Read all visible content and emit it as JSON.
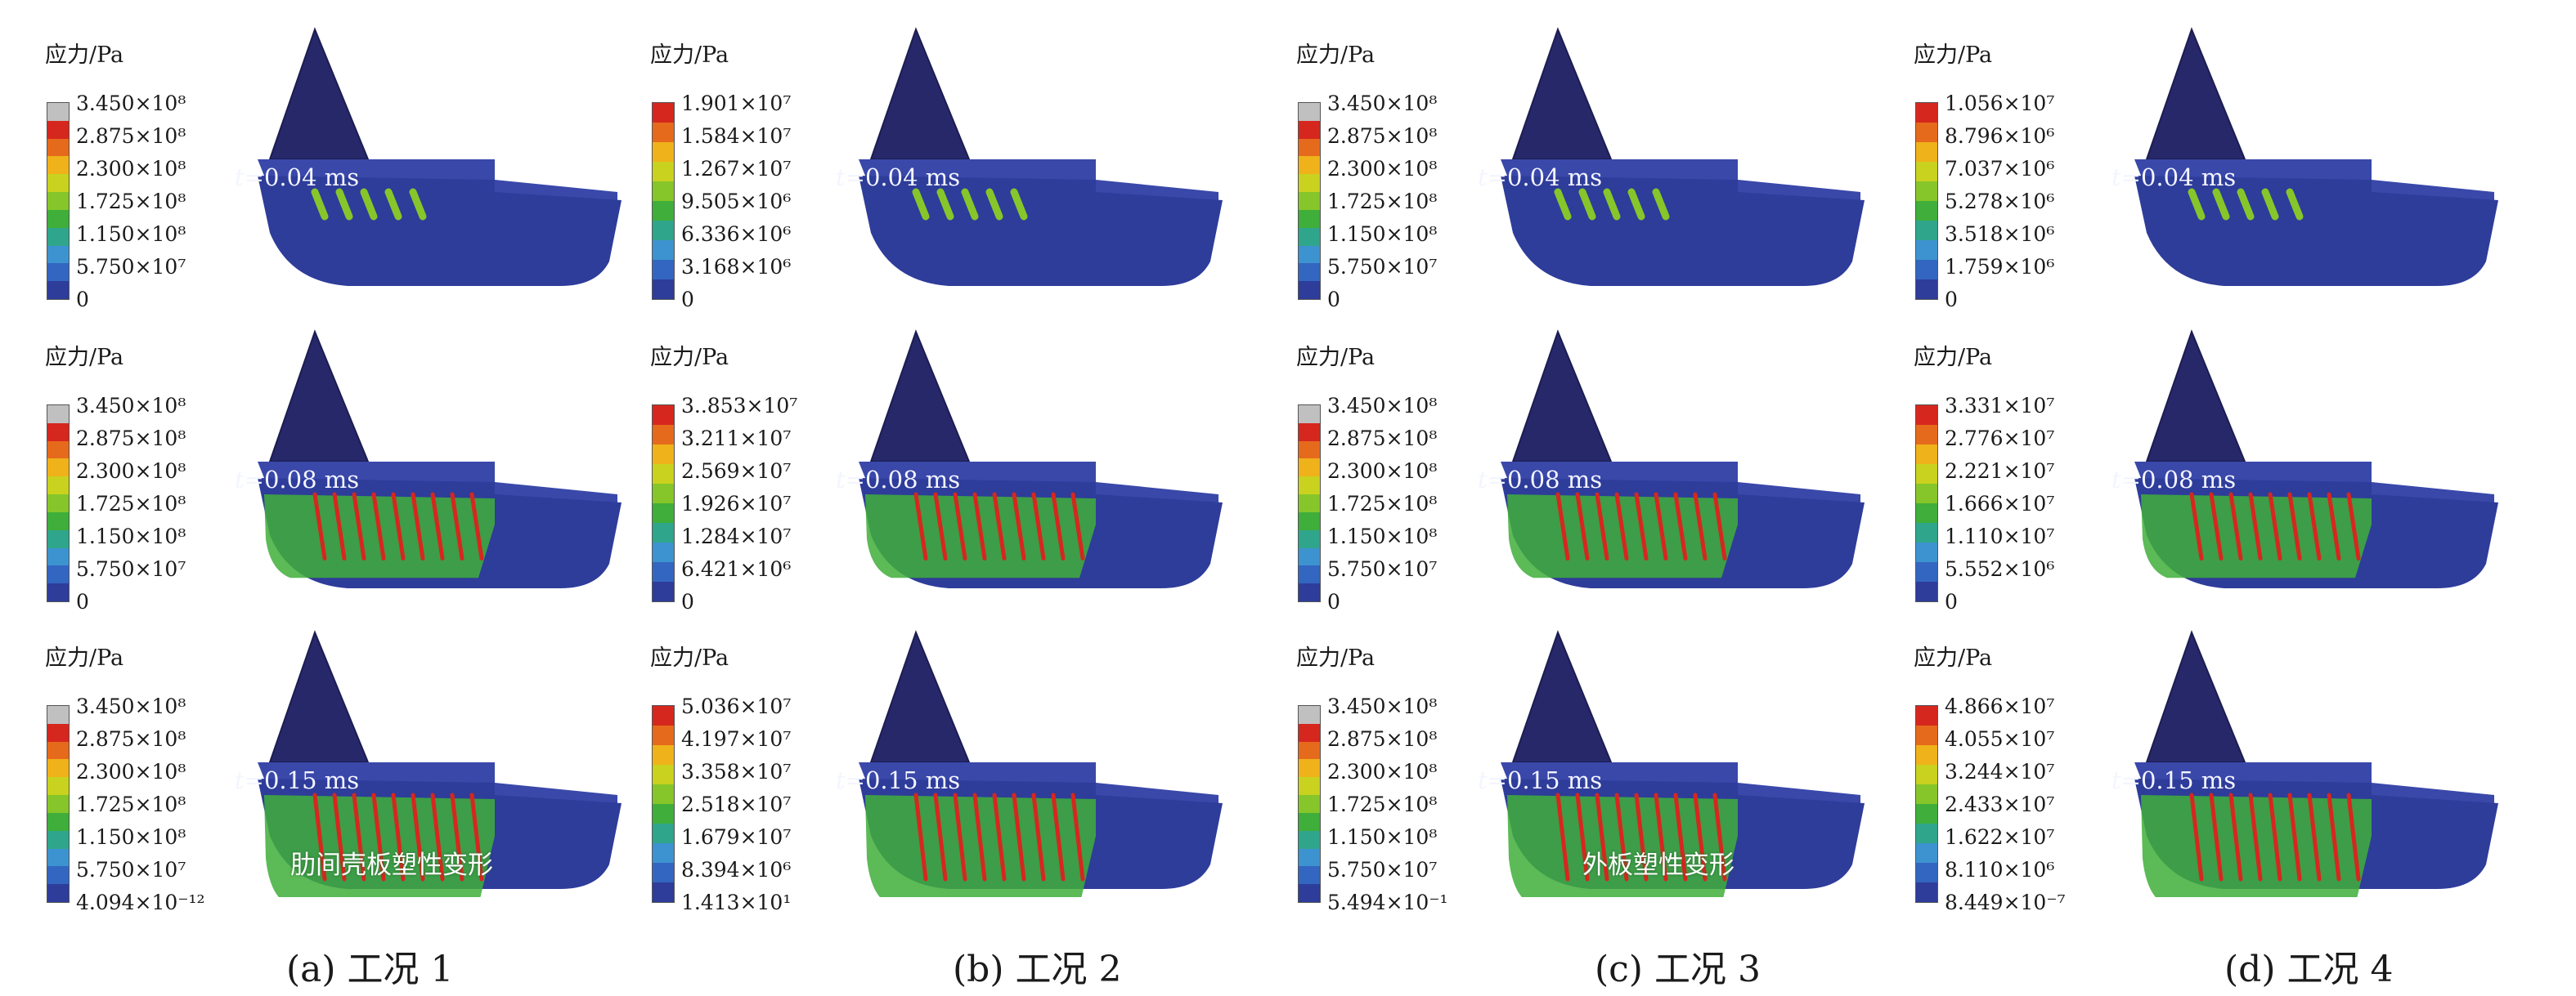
{
  "columns": [
    {
      "caption": "(a) 工况 1",
      "rows": [
        {
          "title": "应力/Pa",
          "time": "0.04 ms",
          "has_gray_top": true,
          "ticks": [
            "3.450×10⁸",
            "2.875×10⁸",
            "2.300×10⁸",
            "1.725×10⁸",
            "1.150×10⁸",
            "5.750×10⁷",
            "0"
          ]
        },
        {
          "title": "应力/Pa",
          "time": "0.08 ms",
          "has_gray_top": true,
          "ticks": [
            "3.450×10⁸",
            "2.875×10⁸",
            "2.300×10⁸",
            "1.725×10⁸",
            "1.150×10⁸",
            "5.750×10⁷",
            "0"
          ]
        },
        {
          "title": "应力/Pa",
          "time": "0.15 ms",
          "has_gray_top": true,
          "annotation": "肋间壳板塑性变形",
          "ticks": [
            "3.450×10⁸",
            "2.875×10⁸",
            "2.300×10⁸",
            "1.725×10⁸",
            "1.150×10⁸",
            "5.750×10⁷",
            "4.094×10⁻¹²"
          ]
        }
      ]
    },
    {
      "caption": "(b) 工况 2",
      "rows": [
        {
          "title": "应力/Pa",
          "time": "0.04 ms",
          "has_gray_top": false,
          "ticks": [
            "1.901×10⁷",
            "1.584×10⁷",
            "1.267×10⁷",
            "9.505×10⁶",
            "6.336×10⁶",
            "3.168×10⁶",
            "0"
          ]
        },
        {
          "title": "应力/Pa",
          "time": "0.08 ms",
          "has_gray_top": false,
          "ticks": [
            "3..853×10⁷",
            "3.211×10⁷",
            "2.569×10⁷",
            "1.926×10⁷",
            "1.284×10⁷",
            "6.421×10⁶",
            "0"
          ]
        },
        {
          "title": "应力/Pa",
          "time": "0.15 ms",
          "has_gray_top": false,
          "ticks": [
            "5.036×10⁷",
            "4.197×10⁷",
            "3.358×10⁷",
            "2.518×10⁷",
            "1.679×10⁷",
            "8.394×10⁶",
            "1.413×10¹"
          ]
        }
      ]
    },
    {
      "caption": "(c) 工况 3",
      "rows": [
        {
          "title": "应力/Pa",
          "time": "0.04 ms",
          "has_gray_top": true,
          "ticks": [
            "3.450×10⁸",
            "2.875×10⁸",
            "2.300×10⁸",
            "1.725×10⁸",
            "1.150×10⁸",
            "5.750×10⁷",
            "0"
          ]
        },
        {
          "title": "应力/Pa",
          "time": "0.08 ms",
          "has_gray_top": true,
          "ticks": [
            "3.450×10⁸",
            "2.875×10⁸",
            "2.300×10⁸",
            "1.725×10⁸",
            "1.150×10⁸",
            "5.750×10⁷",
            "0"
          ]
        },
        {
          "title": "应力/Pa",
          "time": "0.15 ms",
          "has_gray_top": true,
          "annotation": "外板塑性变形",
          "ticks": [
            "3.450×10⁸",
            "2.875×10⁸",
            "2.300×10⁸",
            "1.725×10⁸",
            "1.150×10⁸",
            "5.750×10⁷",
            "5.494×10⁻¹"
          ]
        }
      ]
    },
    {
      "caption": "(d) 工况 4",
      "rows": [
        {
          "title": "应力/Pa",
          "time": "0.04 ms",
          "has_gray_top": false,
          "ticks": [
            "1.056×10⁷",
            "8.796×10⁶",
            "7.037×10⁶",
            "5.278×10⁶",
            "3.518×10⁶",
            "1.759×10⁶",
            "0"
          ]
        },
        {
          "title": "应力/Pa",
          "time": "0.08 ms",
          "has_gray_top": false,
          "ticks": [
            "3.331×10⁷",
            "2.776×10⁷",
            "2.221×10⁷",
            "1.666×10⁷",
            "1.110×10⁷",
            "5.552×10⁶",
            "0"
          ]
        },
        {
          "title": "应力/Pa",
          "time": "0.15 ms",
          "has_gray_top": false,
          "ticks": [
            "4.866×10⁷",
            "4.055×10⁷",
            "3.244×10⁷",
            "2.433×10⁷",
            "1.622×10⁷",
            "8.110×10⁶",
            "8.449×10⁻⁷"
          ]
        }
      ]
    }
  ],
  "time_prefix": "t",
  "time_equals": "=",
  "colors": {
    "hull_side": "#2e3c9a",
    "hull_top": "#3a48aa",
    "fin": "#26286a",
    "legend": [
      "#c0c0c0",
      "#d6271e",
      "#e66a1c",
      "#f0b21a",
      "#c9d21e",
      "#86c62a",
      "#3fae3a",
      "#2fa58c",
      "#3d93cf",
      "#3366c0",
      "#2e3c9a"
    ]
  }
}
